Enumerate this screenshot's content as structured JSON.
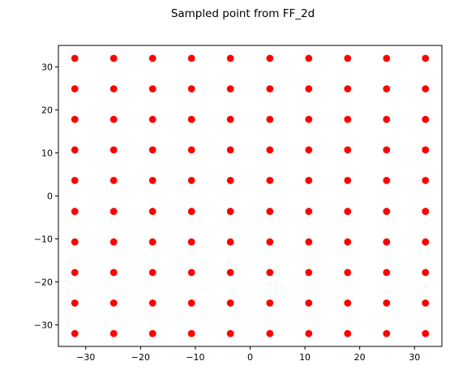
{
  "chart_data": {
    "type": "scatter",
    "title": "Sampled point from FF_2d",
    "xlabel": "",
    "ylabel": "",
    "xlim": [
      -35,
      35
    ],
    "ylim": [
      -35,
      35
    ],
    "grid": false,
    "marker_color": "#ff0000",
    "xticks": [
      -30,
      -20,
      -10,
      0,
      10,
      20,
      30
    ],
    "yticks": [
      -30,
      -20,
      -10,
      0,
      10,
      20,
      30
    ],
    "grid_values": [
      -32,
      -24.9,
      -17.8,
      -10.7,
      -3.6,
      3.6,
      10.7,
      17.8,
      24.9,
      32
    ]
  }
}
